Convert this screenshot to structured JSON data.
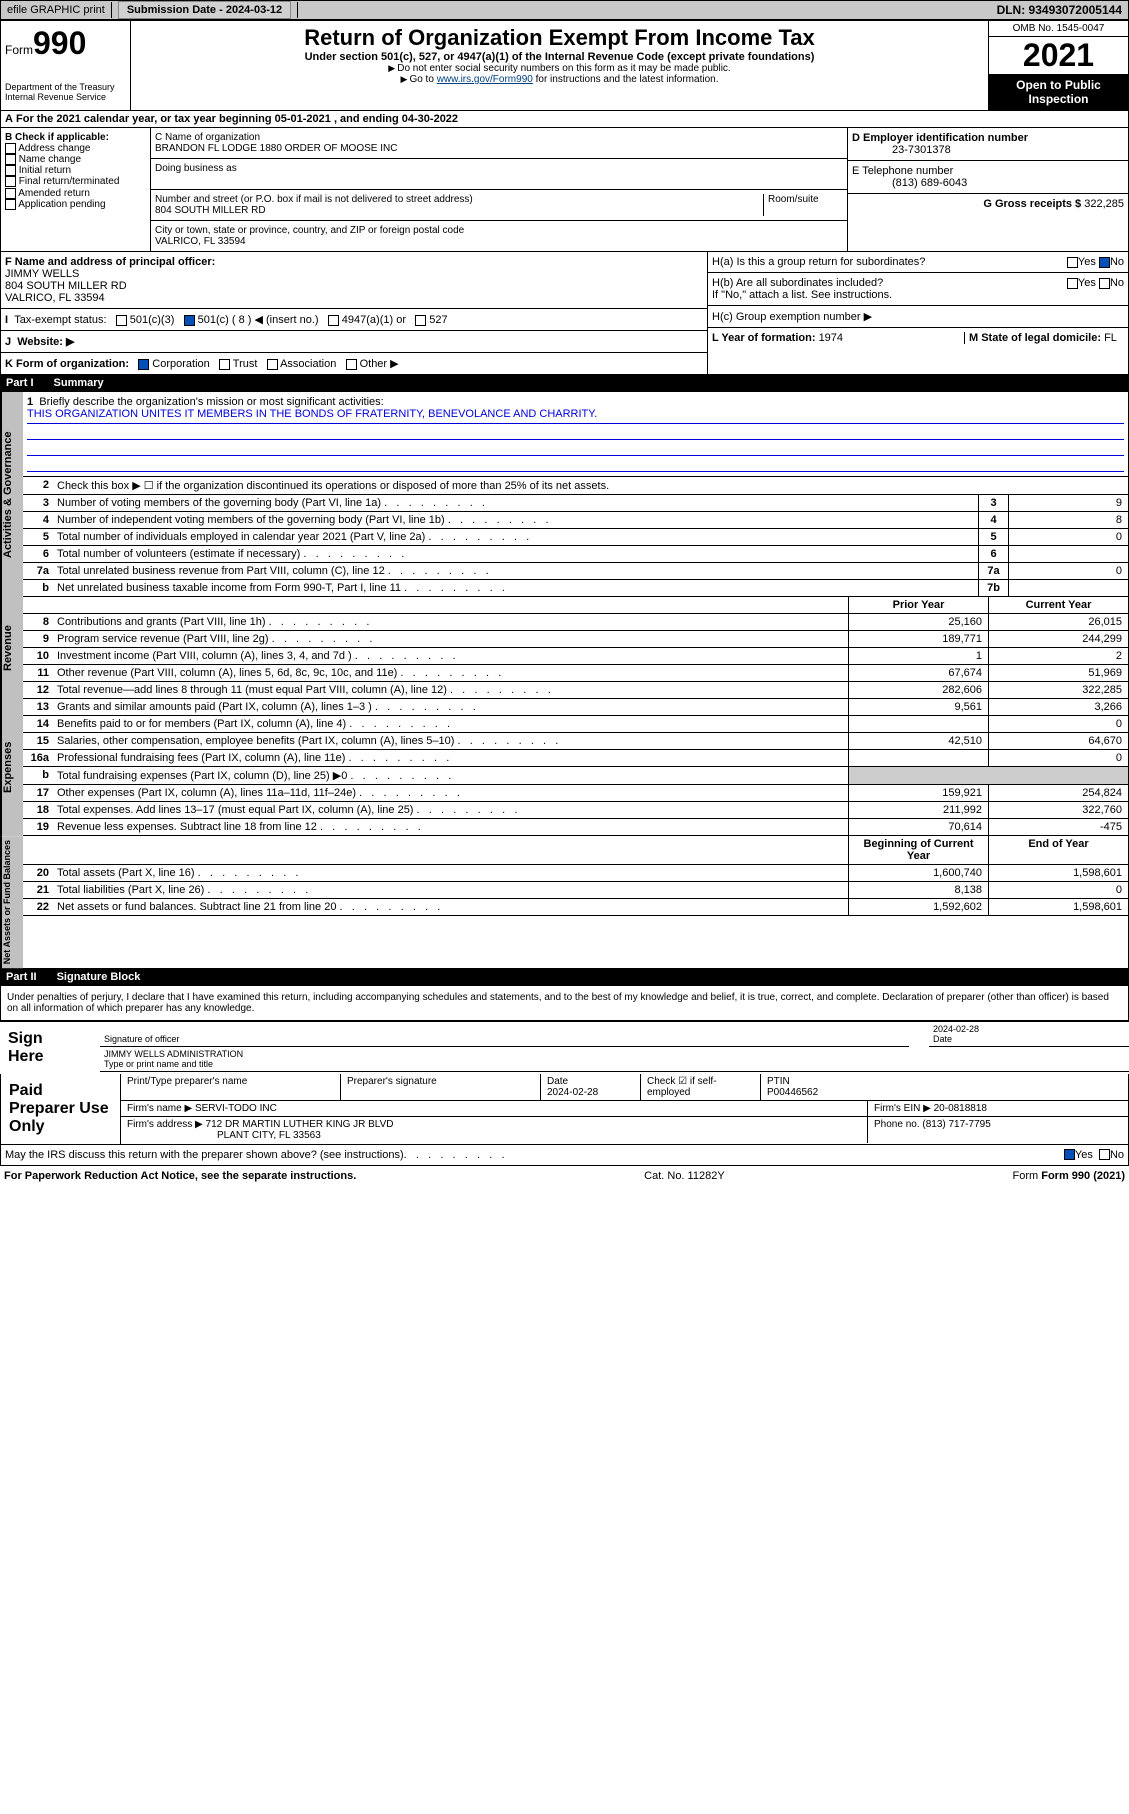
{
  "topbar": {
    "efile": "efile GRAPHIC print",
    "submission_label": "Submission Date - 2024-03-12",
    "dln": "DLN: 93493072005144"
  },
  "header": {
    "form_label": "Form",
    "form_num": "990",
    "dept": "Department of the Treasury",
    "irs": "Internal Revenue Service",
    "title": "Return of Organization Exempt From Income Tax",
    "sub1": "Under section 501(c), 527, or 4947(a)(1) of the Internal Revenue Code (except private foundations)",
    "sub2": "Do not enter social security numbers on this form as it may be made public.",
    "sub3_pre": "Go to ",
    "sub3_link": "www.irs.gov/Form990",
    "sub3_post": " for instructions and the latest information.",
    "omb": "OMB No. 1545-0047",
    "year": "2021",
    "otp": "Open to Public Inspection"
  },
  "row_a": "For the 2021 calendar year, or tax year beginning 05-01-2021   , and ending 04-30-2022",
  "col_b": {
    "title": "B Check if applicable:",
    "opts": [
      "Address change",
      "Name change",
      "Initial return",
      "Final return/terminated",
      "Amended return",
      "Application pending"
    ]
  },
  "col_c": {
    "name_label": "C Name of organization",
    "name": "BRANDON FL LODGE 1880 ORDER OF MOOSE INC",
    "dba_label": "Doing business as",
    "addr_label": "Number and street (or P.O. box if mail is not delivered to street address)",
    "room_label": "Room/suite",
    "addr": "804 SOUTH MILLER RD",
    "city_label": "City or town, state or province, country, and ZIP or foreign postal code",
    "city": "VALRICO, FL  33594"
  },
  "col_d": {
    "d_label": "D Employer identification number",
    "d_val": "23-7301378",
    "e_label": "E Telephone number",
    "e_val": "(813) 689-6043",
    "g_label": "G Gross receipts $ ",
    "g_val": "322,285"
  },
  "block_f": {
    "f_label": "F  Name and address of principal officer:",
    "f_name": "JIMMY WELLS",
    "f_addr1": "804 SOUTH MILLER RD",
    "f_addr2": "VALRICO, FL  33594"
  },
  "tax_status": {
    "label": "Tax-exempt status:",
    "o1": "501(c)(3)",
    "o2": "501(c) ( 8 ) ◀ (insert no.)",
    "o3": "4947(a)(1) or",
    "o4": "527"
  },
  "website_label": "Website: ▶",
  "k_label": "K Form of organization:",
  "k_opts": [
    "Corporation",
    "Trust",
    "Association",
    "Other ▶"
  ],
  "h": {
    "ha": "H(a)  Is this a group return for subordinates?",
    "hb": "H(b)  Are all subordinates included?",
    "hb_note": "If \"No,\" attach a list. See instructions.",
    "hc": "H(c)  Group exemption number ▶"
  },
  "l_label": "L Year of formation: ",
  "l_val": "1974",
  "m_label": "M State of legal domicile: ",
  "m_val": "FL",
  "part1": {
    "num": "Part I",
    "title": "Summary"
  },
  "mission": {
    "label": "Briefly describe the organization's mission or most significant activities:",
    "text": "THIS ORGANIZATION UNITES IT MEMBERS IN THE BONDS OF FRATERNITY, BENEVOLANCE AND CHARRITY."
  },
  "lines_gov": [
    {
      "n": "2",
      "t": "Check this box ▶ ☐  if the organization discontinued its operations or disposed of more than 25% of its net assets."
    },
    {
      "n": "3",
      "t": "Number of voting members of the governing body (Part VI, line 1a)",
      "b": "3",
      "v": "9"
    },
    {
      "n": "4",
      "t": "Number of independent voting members of the governing body (Part VI, line 1b)",
      "b": "4",
      "v": "8"
    },
    {
      "n": "5",
      "t": "Total number of individuals employed in calendar year 2021 (Part V, line 2a)",
      "b": "5",
      "v": "0"
    },
    {
      "n": "6",
      "t": "Total number of volunteers (estimate if necessary)",
      "b": "6",
      "v": ""
    },
    {
      "n": "7a",
      "t": "Total unrelated business revenue from Part VIII, column (C), line 12",
      "b": "7a",
      "v": "0"
    },
    {
      "n": "b",
      "t": "Net unrelated business taxable income from Form 990-T, Part I, line 11",
      "b": "7b",
      "v": ""
    }
  ],
  "col_hdrs": {
    "prior": "Prior Year",
    "current": "Current Year"
  },
  "rev": [
    {
      "n": "8",
      "t": "Contributions and grants (Part VIII, line 1h)",
      "p": "25,160",
      "c": "26,015"
    },
    {
      "n": "9",
      "t": "Program service revenue (Part VIII, line 2g)",
      "p": "189,771",
      "c": "244,299"
    },
    {
      "n": "10",
      "t": "Investment income (Part VIII, column (A), lines 3, 4, and 7d )",
      "p": "1",
      "c": "2"
    },
    {
      "n": "11",
      "t": "Other revenue (Part VIII, column (A), lines 5, 6d, 8c, 9c, 10c, and 11e)",
      "p": "67,674",
      "c": "51,969"
    },
    {
      "n": "12",
      "t": "Total revenue—add lines 8 through 11 (must equal Part VIII, column (A), line 12)",
      "p": "282,606",
      "c": "322,285"
    }
  ],
  "exp": [
    {
      "n": "13",
      "t": "Grants and similar amounts paid (Part IX, column (A), lines 1–3 )",
      "p": "9,561",
      "c": "3,266"
    },
    {
      "n": "14",
      "t": "Benefits paid to or for members (Part IX, column (A), line 4)",
      "p": "",
      "c": "0"
    },
    {
      "n": "15",
      "t": "Salaries, other compensation, employee benefits (Part IX, column (A), lines 5–10)",
      "p": "42,510",
      "c": "64,670"
    },
    {
      "n": "16a",
      "t": "Professional fundraising fees (Part IX, column (A), line 11e)",
      "p": "",
      "c": "0"
    },
    {
      "n": "b",
      "t": "Total fundraising expenses (Part IX, column (D), line 25) ▶0",
      "p": null,
      "c": null
    },
    {
      "n": "17",
      "t": "Other expenses (Part IX, column (A), lines 11a–11d, 11f–24e)",
      "p": "159,921",
      "c": "254,824"
    },
    {
      "n": "18",
      "t": "Total expenses. Add lines 13–17 (must equal Part IX, column (A), line 25)",
      "p": "211,992",
      "c": "322,760"
    },
    {
      "n": "19",
      "t": "Revenue less expenses. Subtract line 18 from line 12",
      "p": "70,614",
      "c": "-475"
    }
  ],
  "net_hdrs": {
    "begin": "Beginning of Current Year",
    "end": "End of Year"
  },
  "net": [
    {
      "n": "20",
      "t": "Total assets (Part X, line 16)",
      "p": "1,600,740",
      "c": "1,598,601"
    },
    {
      "n": "21",
      "t": "Total liabilities (Part X, line 26)",
      "p": "8,138",
      "c": "0"
    },
    {
      "n": "22",
      "t": "Net assets or fund balances. Subtract line 21 from line 20",
      "p": "1,592,602",
      "c": "1,598,601"
    }
  ],
  "part2": {
    "num": "Part II",
    "title": "Signature Block"
  },
  "penalties": "Under penalties of perjury, I declare that I have examined this return, including accompanying schedules and statements, and to the best of my knowledge and belief, it is true, correct, and complete. Declaration of preparer (other than officer) is based on all information of which preparer has any knowledge.",
  "sign": {
    "label": "Sign Here",
    "sig_label": "Signature of officer",
    "date": "2024-02-28",
    "date_label": "Date",
    "name": "JIMMY WELLS ADMINISTRATION",
    "name_label": "Type or print name and title"
  },
  "prep": {
    "label": "Paid Preparer Use Only",
    "pt_label": "Print/Type preparer's name",
    "ps_label": "Preparer's signature",
    "date_label": "Date",
    "date": "2024-02-28",
    "check_label": "Check ☑ if self-employed",
    "ptin_label": "PTIN",
    "ptin": "P00446562",
    "firm_label": "Firm's name    ▶ ",
    "firm": "SERVI-TODO INC",
    "ein_label": "Firm's EIN ▶ ",
    "ein": "20-0818818",
    "addr_label": "Firm's address ▶ ",
    "addr1": "712 DR MARTIN LUTHER KING JR BLVD",
    "addr2": "PLANT CITY, FL  33563",
    "phone_label": "Phone no. ",
    "phone": "(813) 717-7795"
  },
  "discuss": "May the IRS discuss this return with the preparer shown above? (see instructions)",
  "footer": {
    "pra": "For Paperwork Reduction Act Notice, see the separate instructions.",
    "cat": "Cat. No. 11282Y",
    "form": "Form 990 (2021)"
  },
  "side_labels": {
    "gov": "Activities & Governance",
    "rev": "Revenue",
    "exp": "Expenses",
    "net": "Net Assets or Fund Balances"
  }
}
